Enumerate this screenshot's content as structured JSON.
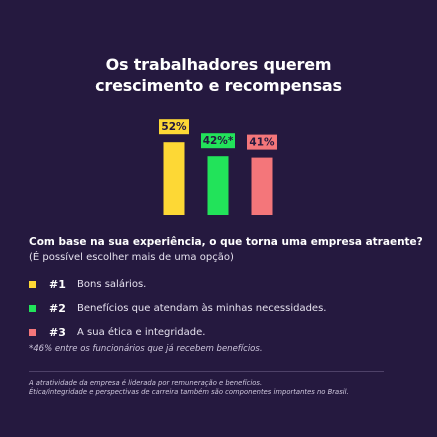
{
  "title": {
    "line1": "Os trabalhadores querem",
    "line2": "crescimento e recompensas"
  },
  "chart_data": {
    "type": "bar",
    "categories": [
      "#1",
      "#2",
      "#3"
    ],
    "values": [
      52,
      42,
      41
    ],
    "value_labels": [
      "52%",
      "42%*",
      "41%"
    ],
    "colors": [
      "#fdd835",
      "#22e35a",
      "#f4767a"
    ],
    "title": "Os trabalhadores querem crescimento e recompensas",
    "grid": false
  },
  "question": "Com base na sua experiência, o que torna uma empresa atraente?",
  "subquestion": "(É possível escolher mais de uma opção)",
  "legend": [
    {
      "rank": "#1",
      "text": "Bons salários.",
      "color": "#fdd835"
    },
    {
      "rank": "#2",
      "text": "Benefícios que atendam às minhas necessidades.",
      "color": "#22e35a"
    },
    {
      "rank": "#3",
      "text": "A sua ética e integridade.",
      "color": "#f4767a"
    }
  ],
  "note": "*46% entre os funcionários que já recebem benefícios.",
  "footer": {
    "line1": "A atratividade da empresa é liderada por remuneração e benefícios.",
    "line2": "Ética/integridade e perspectivas de carreira também são componentes importantes no Brasil."
  }
}
